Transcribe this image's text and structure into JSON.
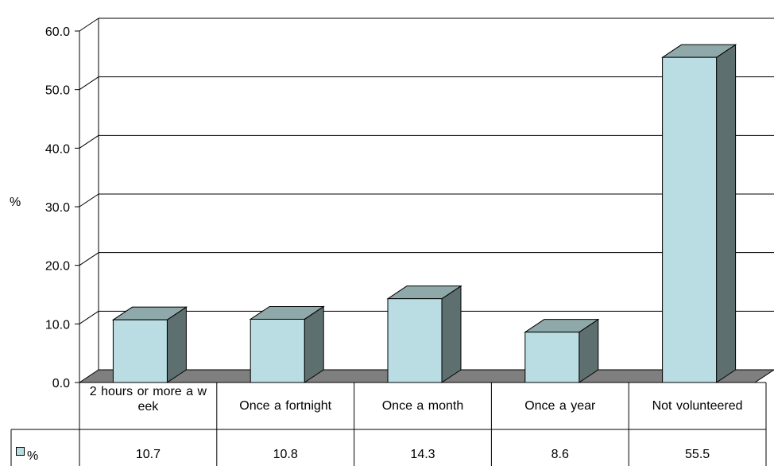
{
  "chart_data": {
    "type": "bar",
    "categories": [
      "2 hours or more a w eek",
      "Once a fortnight",
      "Once a month",
      "Once a year",
      "Not volunteered"
    ],
    "series": [
      {
        "name": "%",
        "values": [
          10.7,
          10.8,
          14.3,
          8.6,
          55.5
        ]
      }
    ],
    "value_labels": [
      "10.7",
      "10.8",
      "14.3",
      "8.6",
      "55.5"
    ],
    "ylabel": "%",
    "ylim": [
      0,
      60
    ],
    "yticks": [
      "0.0",
      "10.0",
      "20.0",
      "30.0",
      "40.0",
      "50.0",
      "60.0"
    ],
    "grid": true,
    "legend": "data-table",
    "colors": {
      "bar_front": "#b9dde2",
      "bar_side": "#5e6f6f",
      "bar_top": "#8fa8a9",
      "floor": "#7f7f7f"
    }
  }
}
